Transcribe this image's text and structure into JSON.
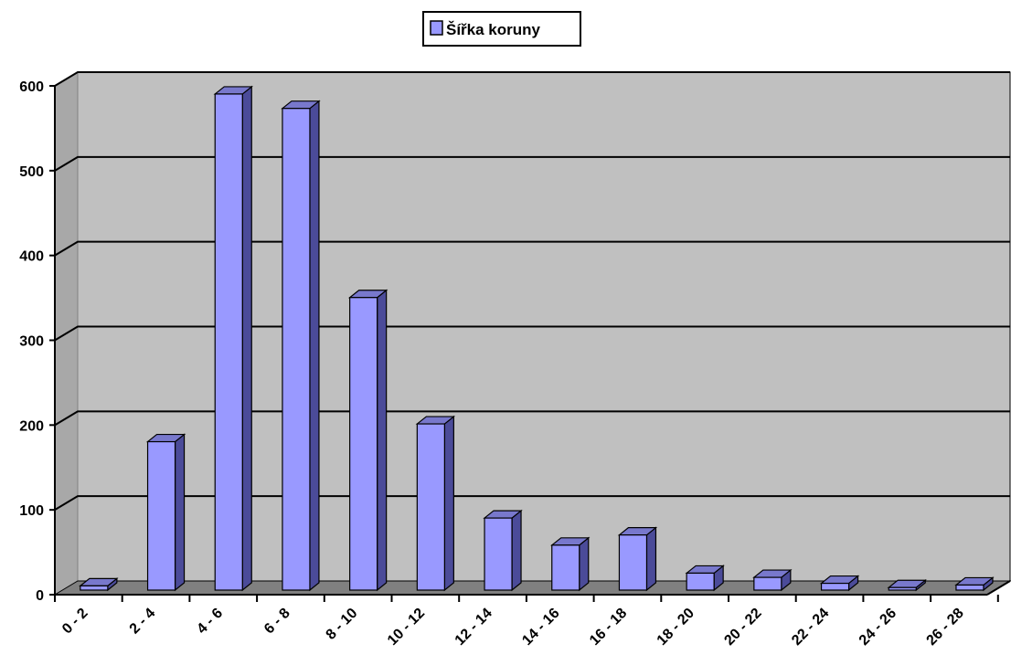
{
  "chart_data": {
    "type": "bar",
    "title": "",
    "xlabel": "",
    "ylabel": "",
    "categories": [
      "0 - 2",
      "2 - 4",
      "4 - 6",
      "6 - 8",
      "8 - 10",
      "10 - 12",
      "12 - 14",
      "14 - 16",
      "16 - 18",
      "18 - 20",
      "20 - 22",
      "22 - 24",
      "24 - 26",
      "26 - 28"
    ],
    "series": [
      {
        "name": "Šířka koruny",
        "values": [
          5,
          175,
          585,
          568,
          345,
          196,
          85,
          53,
          65,
          20,
          15,
          8,
          3,
          6
        ]
      }
    ],
    "ylim": [
      0,
      600
    ],
    "yticks": [
      0,
      100,
      200,
      300,
      400,
      500,
      600
    ],
    "grid": true,
    "legend_position": "top-center",
    "style": "3d-column"
  },
  "colors": {
    "bar_front": "#9999ff",
    "bar_side": "#4b4b99",
    "bar_top": "#7878cc",
    "plot_wall": "#c0c0c0",
    "plot_side_wall": "#a8a8a8",
    "plot_floor": "#808080",
    "gridline": "#000000"
  }
}
